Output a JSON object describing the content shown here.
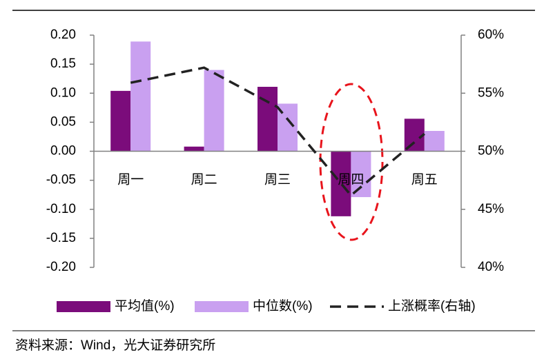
{
  "chart_data": {
    "type": "bar_line",
    "categories": [
      "周一",
      "周二",
      "周三",
      "周四",
      "周五"
    ],
    "series": [
      {
        "name": "平均值(%)",
        "type": "bar",
        "color": "#7b0c7b",
        "values": [
          0.104,
          0.008,
          0.111,
          -0.112,
          0.056
        ]
      },
      {
        "name": "中位数(%)",
        "type": "bar",
        "color": "#c9a0f0",
        "values": [
          0.189,
          0.14,
          0.082,
          -0.079,
          0.035
        ]
      },
      {
        "name": "上涨概率(右轴)",
        "type": "line",
        "axis": "y2",
        "color": "#222222",
        "dashed": true,
        "values": [
          55.9,
          57.2,
          53.8,
          46.2,
          51.5
        ]
      }
    ],
    "ylim": [
      -0.2,
      0.2
    ],
    "yticks": [
      {
        "value": 0.2,
        "label": "0.20"
      },
      {
        "value": 0.15,
        "label": "0.15"
      },
      {
        "value": 0.1,
        "label": "0.10"
      },
      {
        "value": 0.05,
        "label": "0.05"
      },
      {
        "value": 0,
        "label": "0.00"
      },
      -0.05,
      {
        "value": -0.1,
        "label": "-0.10"
      },
      -0.15,
      {
        "value": -0.2,
        "label": "-0.20"
      }
    ],
    "y2lim": [
      40,
      60
    ],
    "y2ticks": [
      {
        "value": 60,
        "label": "60%"
      },
      {
        "value": 55,
        "label": "55%"
      },
      {
        "value": 50,
        "label": "50%"
      },
      {
        "value": 45,
        "label": "45%"
      },
      {
        "value": 40,
        "label": "40%"
      }
    ],
    "legend": "bottom",
    "source": "资料来源：Wind，光大证券研究所"
  }
}
